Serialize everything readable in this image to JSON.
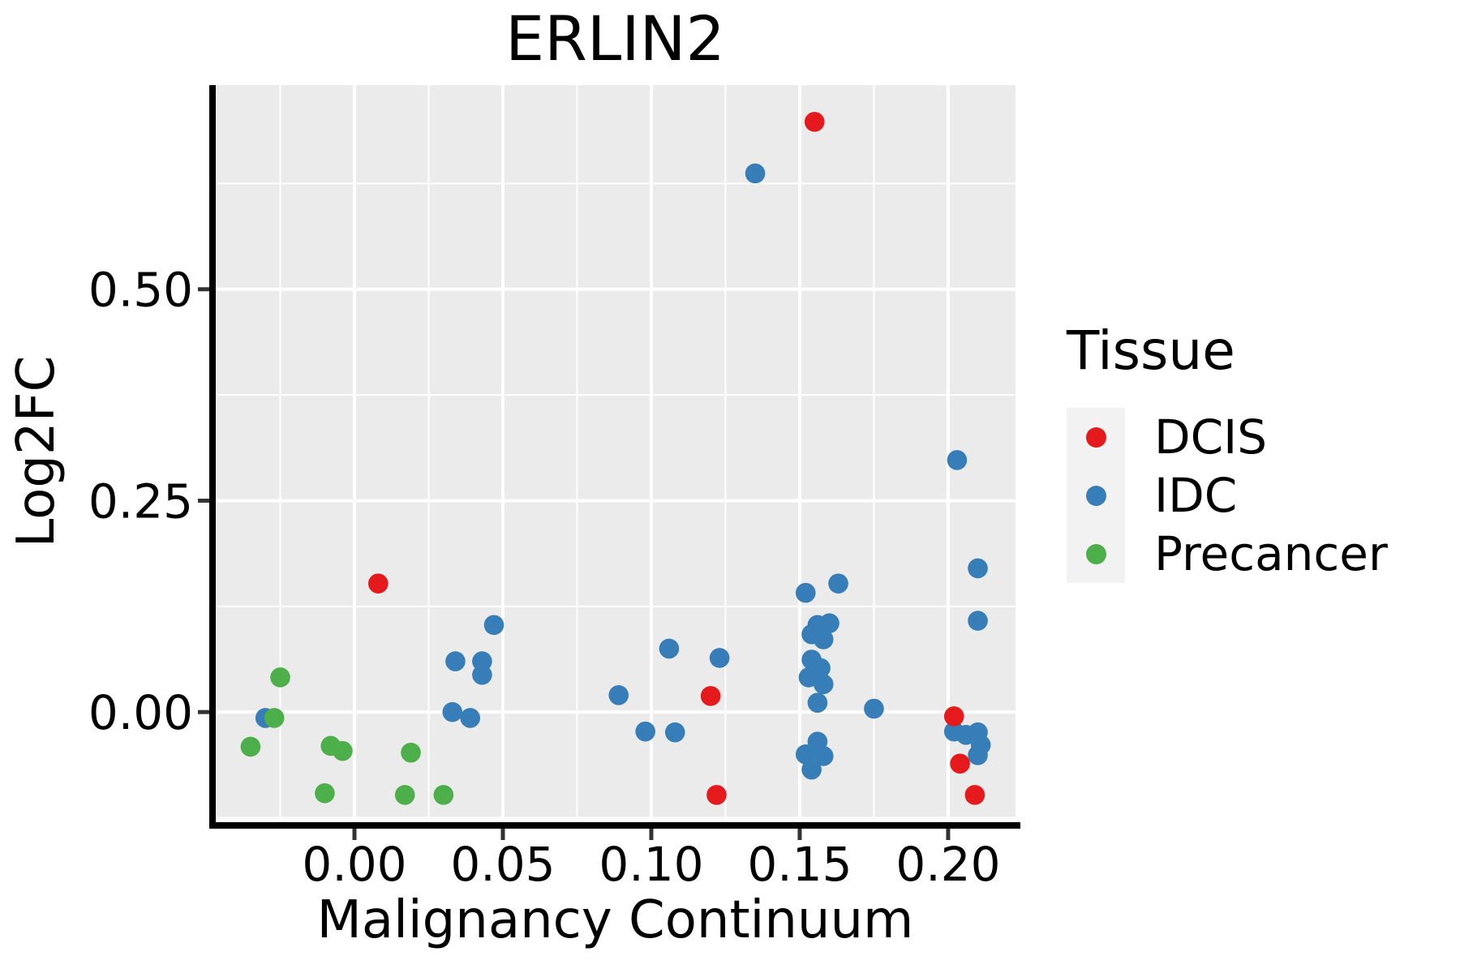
{
  "title": "ERLIN2",
  "chart_data": {
    "type": "scatter",
    "title": "ERLIN2",
    "xlabel": "Malignancy Continuum",
    "ylabel": "Log2FC",
    "x_axis": {
      "range": [
        -0.047,
        0.2227
      ],
      "ticks": [
        0.0,
        0.05,
        0.1,
        0.15,
        0.2
      ],
      "tick_labels": [
        "0.00",
        "0.05",
        "0.10",
        "0.15",
        "0.20"
      ],
      "minor_ticks": [
        -0.025,
        0.025,
        0.075,
        0.125,
        0.175
      ]
    },
    "y_axis": {
      "range": [
        -0.1264,
        0.7414
      ],
      "ticks": [
        0.0,
        0.25,
        0.5
      ],
      "tick_labels": [
        "0.00",
        "0.25",
        "0.50"
      ],
      "minor_ticks": [
        -0.125,
        0.125,
        0.375,
        0.625
      ]
    },
    "legend": {
      "title": "Tissue",
      "position": "right"
    },
    "grid": "on",
    "series": [
      {
        "name": "DCIS",
        "color": "#E41A1C",
        "points": [
          [
            0.008,
            0.152
          ],
          [
            0.155,
            0.698
          ],
          [
            0.12,
            0.019
          ],
          [
            0.122,
            -0.098
          ],
          [
            0.202,
            -0.005
          ],
          [
            0.204,
            -0.061
          ],
          [
            0.209,
            -0.098
          ]
        ]
      },
      {
        "name": "IDC",
        "color": "#377EB8",
        "points": [
          [
            -0.03,
            -0.007
          ],
          [
            0.033,
            0.0
          ],
          [
            0.034,
            0.06
          ],
          [
            0.039,
            -0.007
          ],
          [
            0.043,
            0.06
          ],
          [
            0.043,
            0.044
          ],
          [
            0.047,
            0.103
          ],
          [
            0.089,
            0.02
          ],
          [
            0.098,
            -0.023
          ],
          [
            0.106,
            0.075
          ],
          [
            0.108,
            -0.024
          ],
          [
            0.123,
            0.064
          ],
          [
            0.135,
            0.637
          ],
          [
            0.152,
            0.141
          ],
          [
            0.163,
            0.152
          ],
          [
            0.156,
            0.103
          ],
          [
            0.16,
            0.105
          ],
          [
            0.154,
            0.092
          ],
          [
            0.158,
            0.086
          ],
          [
            0.154,
            0.062
          ],
          [
            0.157,
            0.052
          ],
          [
            0.153,
            0.041
          ],
          [
            0.158,
            0.033
          ],
          [
            0.156,
            0.011
          ],
          [
            0.156,
            -0.035
          ],
          [
            0.152,
            -0.05
          ],
          [
            0.158,
            -0.052
          ],
          [
            0.154,
            -0.068
          ],
          [
            0.175,
            0.004
          ],
          [
            0.203,
            0.298
          ],
          [
            0.21,
            0.17
          ],
          [
            0.21,
            0.108
          ],
          [
            0.202,
            -0.023
          ],
          [
            0.206,
            -0.027
          ],
          [
            0.21,
            -0.024
          ],
          [
            0.211,
            -0.039
          ],
          [
            0.21,
            -0.051
          ]
        ]
      },
      {
        "name": "Precancer",
        "color": "#4DAF4A",
        "points": [
          [
            -0.025,
            0.041
          ],
          [
            -0.027,
            -0.007
          ],
          [
            -0.035,
            -0.041
          ],
          [
            -0.008,
            -0.04
          ],
          [
            -0.004,
            -0.046
          ],
          [
            -0.01,
            -0.096
          ],
          [
            0.019,
            -0.048
          ],
          [
            0.017,
            -0.098
          ],
          [
            0.03,
            -0.098
          ]
        ]
      }
    ],
    "style": {
      "panel_bg": "#EBEBEB",
      "grid_color": "#FFFFFF",
      "legend_key_bg": "#F2F2F2",
      "axis_line_color": "#000000",
      "tick_color": "#333333",
      "text_color": "#000000",
      "point_radius": 12.3
    }
  }
}
